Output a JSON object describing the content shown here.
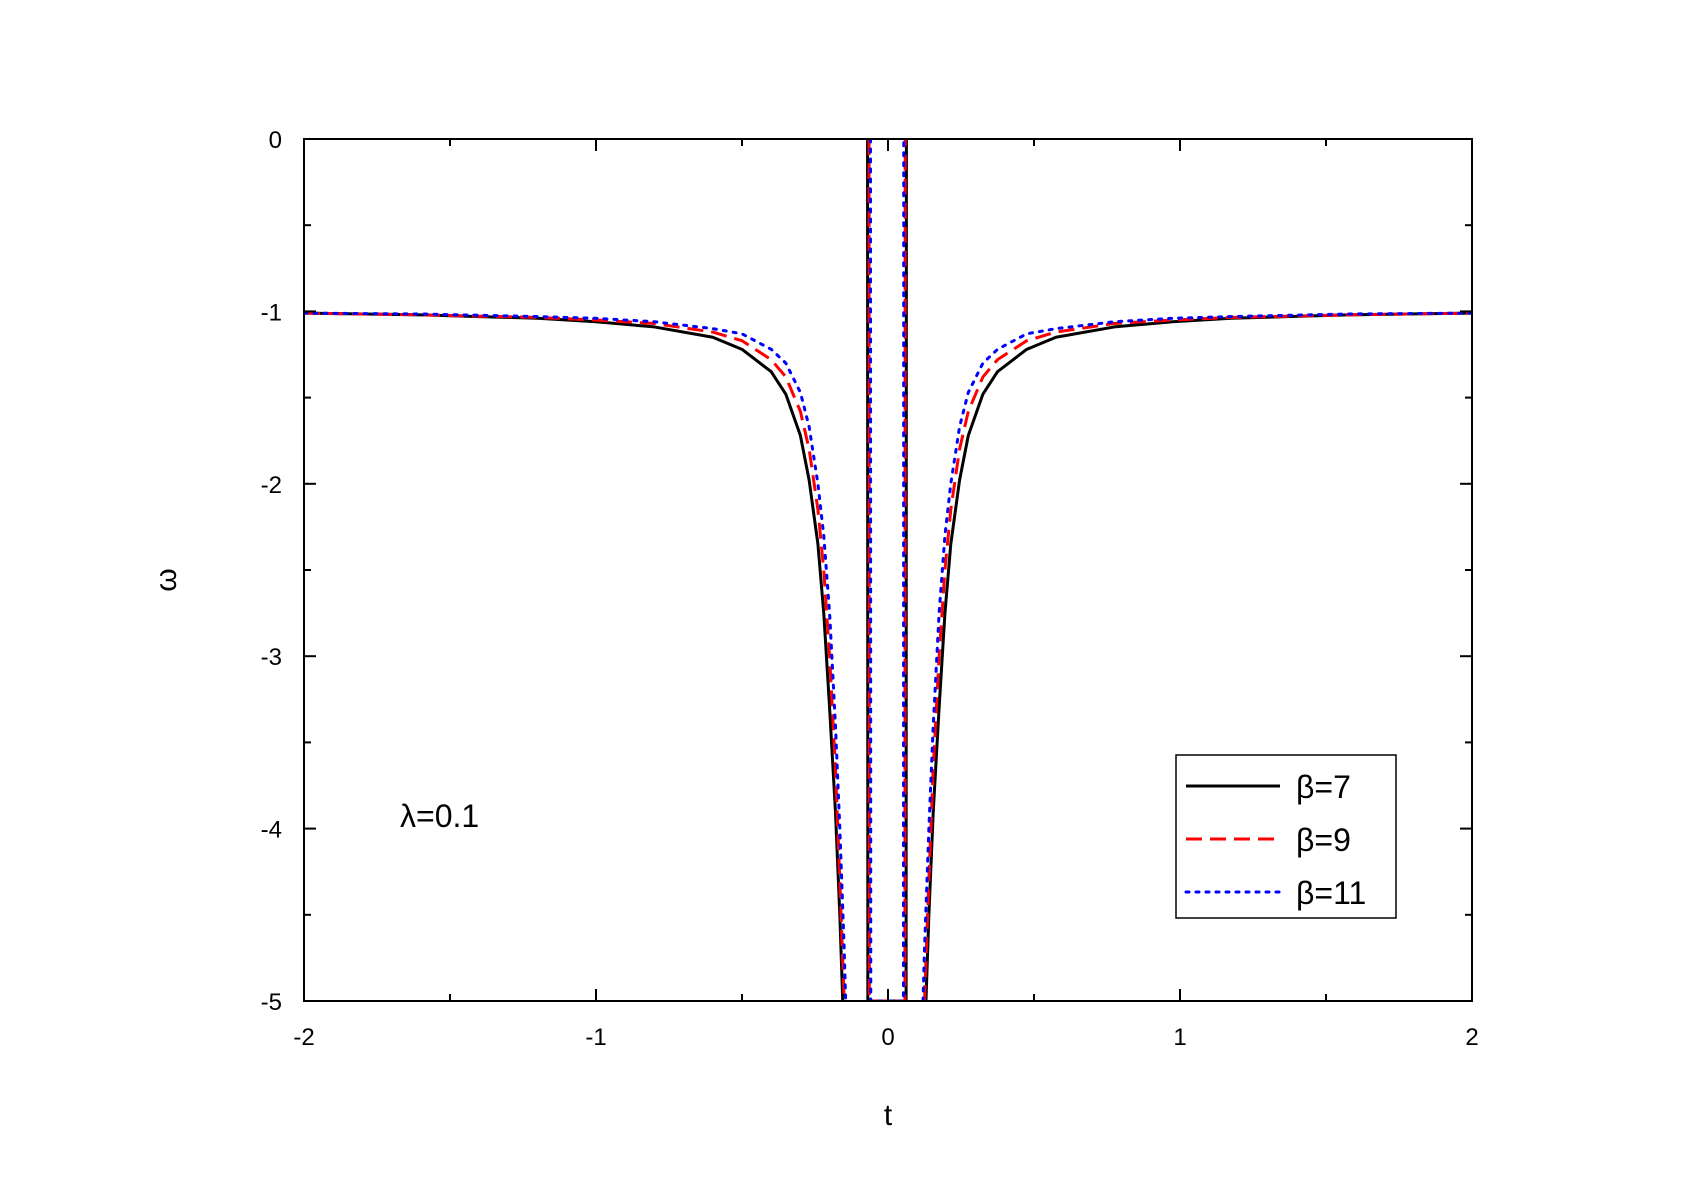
{
  "chart_data": {
    "type": "line",
    "title": "",
    "xlabel": "t",
    "ylabel": "ω",
    "xlim": [
      -2,
      2
    ],
    "ylim": [
      -5,
      0
    ],
    "x_ticks": [
      -2,
      -1,
      0,
      1,
      2
    ],
    "x_tick_labels": [
      "-2",
      "-1",
      "0",
      "1",
      "2"
    ],
    "y_ticks": [
      0,
      -1,
      -2,
      -3,
      -4,
      -5
    ],
    "y_tick_labels": [
      "0",
      "-1",
      "-2",
      "-3",
      "-4",
      "-5"
    ],
    "grid": false,
    "legend_position": "bottom-right",
    "annotation": "λ=0.1",
    "series": [
      {
        "name": "β=7",
        "color": "#000000",
        "style": "solid",
        "left_branch": [
          [
            -2.0,
            -1.01
          ],
          [
            -1.6,
            -1.02
          ],
          [
            -1.2,
            -1.04
          ],
          [
            -1.0,
            -1.06
          ],
          [
            -0.8,
            -1.09
          ],
          [
            -0.6,
            -1.15
          ],
          [
            -0.5,
            -1.22
          ],
          [
            -0.4,
            -1.35
          ],
          [
            -0.35,
            -1.48
          ],
          [
            -0.3,
            -1.72
          ],
          [
            -0.27,
            -1.98
          ],
          [
            -0.24,
            -2.35
          ],
          [
            -0.22,
            -2.75
          ],
          [
            -0.2,
            -3.3
          ],
          [
            -0.18,
            -3.9
          ],
          [
            -0.165,
            -4.5
          ],
          [
            -0.155,
            -5.0
          ]
        ],
        "center_branch": [
          [
            -0.07,
            0.0
          ],
          [
            -0.069,
            -5.0
          ],
          [
            0.062,
            -5.0
          ],
          [
            0.063,
            0.0
          ]
        ],
        "right_branch": [
          [
            0.13,
            -5.0
          ],
          [
            0.14,
            -4.5
          ],
          [
            0.155,
            -3.9
          ],
          [
            0.175,
            -3.3
          ],
          [
            0.195,
            -2.75
          ],
          [
            0.215,
            -2.35
          ],
          [
            0.245,
            -1.98
          ],
          [
            0.275,
            -1.72
          ],
          [
            0.325,
            -1.48
          ],
          [
            0.375,
            -1.35
          ],
          [
            0.475,
            -1.22
          ],
          [
            0.575,
            -1.15
          ],
          [
            0.775,
            -1.09
          ],
          [
            0.975,
            -1.06
          ],
          [
            1.175,
            -1.04
          ],
          [
            1.575,
            -1.02
          ],
          [
            2.0,
            -1.01
          ]
        ]
      },
      {
        "name": "β=9",
        "color": "#ff0000",
        "style": "dashed",
        "left_branch": [
          [
            -2.0,
            -1.01
          ],
          [
            -1.6,
            -1.02
          ],
          [
            -1.2,
            -1.035
          ],
          [
            -1.0,
            -1.05
          ],
          [
            -0.8,
            -1.07
          ],
          [
            -0.6,
            -1.12
          ],
          [
            -0.5,
            -1.17
          ],
          [
            -0.4,
            -1.28
          ],
          [
            -0.35,
            -1.38
          ],
          [
            -0.3,
            -1.58
          ],
          [
            -0.27,
            -1.8
          ],
          [
            -0.24,
            -2.15
          ],
          [
            -0.22,
            -2.5
          ],
          [
            -0.2,
            -3.0
          ],
          [
            -0.18,
            -3.65
          ],
          [
            -0.165,
            -4.3
          ],
          [
            -0.15,
            -5.0
          ]
        ],
        "center_branch": [
          [
            -0.065,
            0.0
          ],
          [
            -0.064,
            -5.0
          ],
          [
            0.058,
            -5.0
          ],
          [
            0.059,
            0.0
          ]
        ],
        "right_branch": [
          [
            0.125,
            -5.0
          ],
          [
            0.14,
            -4.3
          ],
          [
            0.155,
            -3.65
          ],
          [
            0.175,
            -3.0
          ],
          [
            0.195,
            -2.5
          ],
          [
            0.215,
            -2.15
          ],
          [
            0.245,
            -1.8
          ],
          [
            0.275,
            -1.58
          ],
          [
            0.325,
            -1.38
          ],
          [
            0.375,
            -1.28
          ],
          [
            0.475,
            -1.17
          ],
          [
            0.575,
            -1.12
          ],
          [
            0.775,
            -1.07
          ],
          [
            0.975,
            -1.05
          ],
          [
            1.175,
            -1.035
          ],
          [
            1.575,
            -1.02
          ],
          [
            2.0,
            -1.01
          ]
        ]
      },
      {
        "name": "β=11",
        "color": "#0000ff",
        "style": "dotted",
        "left_branch": [
          [
            -2.0,
            -1.01
          ],
          [
            -1.6,
            -1.015
          ],
          [
            -1.2,
            -1.03
          ],
          [
            -1.0,
            -1.04
          ],
          [
            -0.8,
            -1.06
          ],
          [
            -0.6,
            -1.1
          ],
          [
            -0.5,
            -1.13
          ],
          [
            -0.4,
            -1.22
          ],
          [
            -0.35,
            -1.3
          ],
          [
            -0.3,
            -1.47
          ],
          [
            -0.27,
            -1.67
          ],
          [
            -0.24,
            -2.0
          ],
          [
            -0.22,
            -2.3
          ],
          [
            -0.2,
            -2.75
          ],
          [
            -0.18,
            -3.4
          ],
          [
            -0.165,
            -4.0
          ],
          [
            -0.15,
            -4.7
          ],
          [
            -0.145,
            -5.0
          ]
        ],
        "center_branch": [
          [
            -0.06,
            0.0
          ],
          [
            -0.059,
            -5.0
          ],
          [
            0.053,
            -5.0
          ],
          [
            0.054,
            0.0
          ]
        ],
        "right_branch": [
          [
            0.12,
            -5.0
          ],
          [
            0.125,
            -4.7
          ],
          [
            0.14,
            -4.0
          ],
          [
            0.155,
            -3.4
          ],
          [
            0.175,
            -2.75
          ],
          [
            0.195,
            -2.3
          ],
          [
            0.215,
            -2.0
          ],
          [
            0.245,
            -1.67
          ],
          [
            0.275,
            -1.47
          ],
          [
            0.325,
            -1.3
          ],
          [
            0.375,
            -1.22
          ],
          [
            0.475,
            -1.13
          ],
          [
            0.575,
            -1.1
          ],
          [
            0.775,
            -1.06
          ],
          [
            0.975,
            -1.04
          ],
          [
            1.175,
            -1.03
          ],
          [
            1.575,
            -1.015
          ],
          [
            2.0,
            -1.01
          ]
        ]
      }
    ]
  }
}
